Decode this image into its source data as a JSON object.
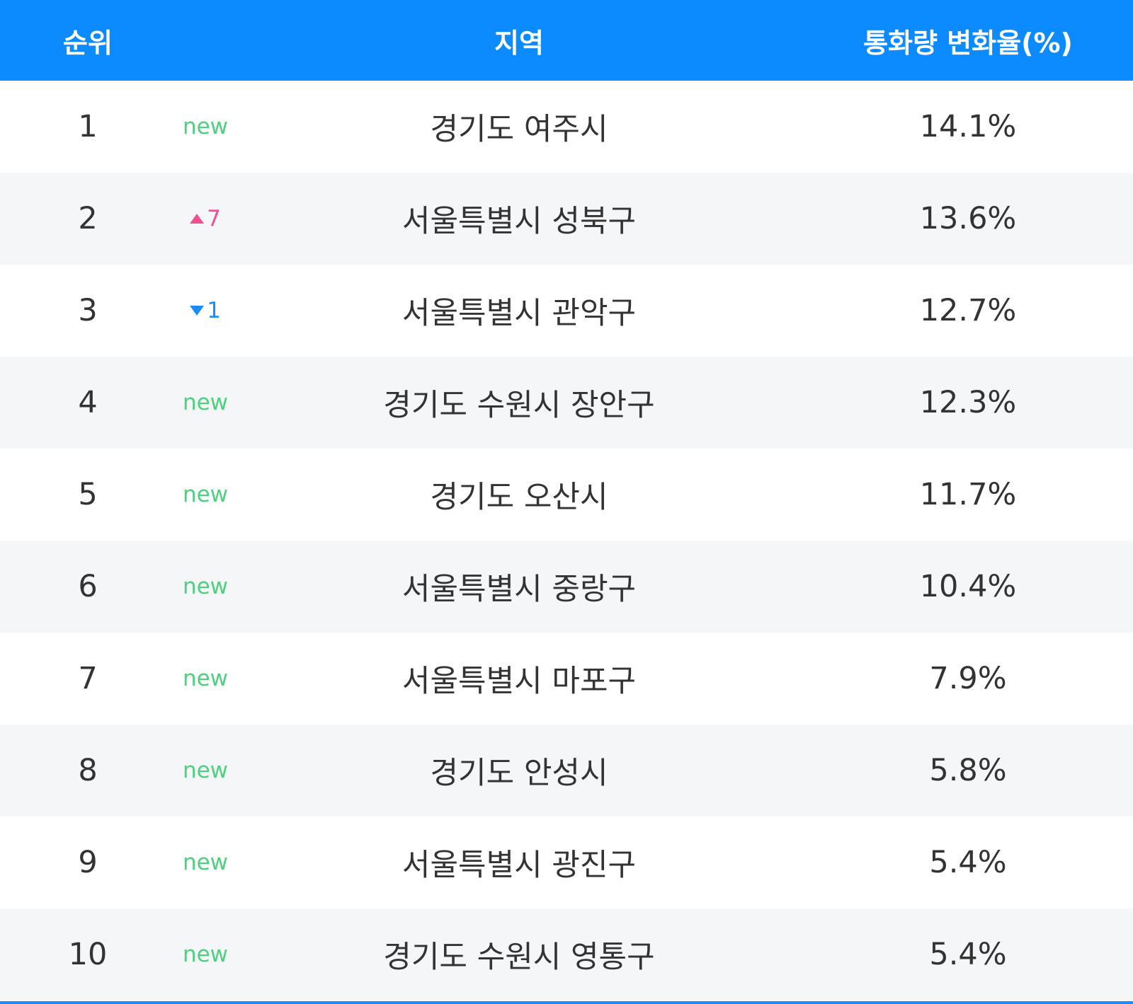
{
  "header": {
    "columns": [
      "순위",
      "지역",
      "통화량 변화율(%)"
    ]
  },
  "table": {
    "rows": [
      {
        "rank": "1",
        "change": {
          "direction": "new",
          "text": "new"
        },
        "region": "경기도 여주시",
        "rate": "14.1%"
      },
      {
        "rank": "2",
        "change": {
          "direction": "up",
          "text": "7"
        },
        "region": "서울특별시 성북구",
        "rate": "13.6%"
      },
      {
        "rank": "3",
        "change": {
          "direction": "down",
          "text": "1"
        },
        "region": "서울특별시 관악구",
        "rate": "12.7%"
      },
      {
        "rank": "4",
        "change": {
          "direction": "new",
          "text": "new"
        },
        "region": "경기도 수원시 장안구",
        "rate": "12.3%"
      },
      {
        "rank": "5",
        "change": {
          "direction": "new",
          "text": "new"
        },
        "region": "경기도 오산시",
        "rate": "11.7%"
      },
      {
        "rank": "6",
        "change": {
          "direction": "new",
          "text": "new"
        },
        "region": "서울특별시 중랑구",
        "rate": "10.4%"
      },
      {
        "rank": "7",
        "change": {
          "direction": "new",
          "text": "new"
        },
        "region": "서울특별시 마포구",
        "rate": "7.9%"
      },
      {
        "rank": "8",
        "change": {
          "direction": "new",
          "text": "new"
        },
        "region": "경기도 안성시",
        "rate": "5.8%"
      },
      {
        "rank": "9",
        "change": {
          "direction": "new",
          "text": "new"
        },
        "region": "서울특별시 광진구",
        "rate": "5.4%"
      },
      {
        "rank": "10",
        "change": {
          "direction": "new",
          "text": "new"
        },
        "region": "경기도 수원시 영통구",
        "rate": "5.4%"
      }
    ]
  }
}
